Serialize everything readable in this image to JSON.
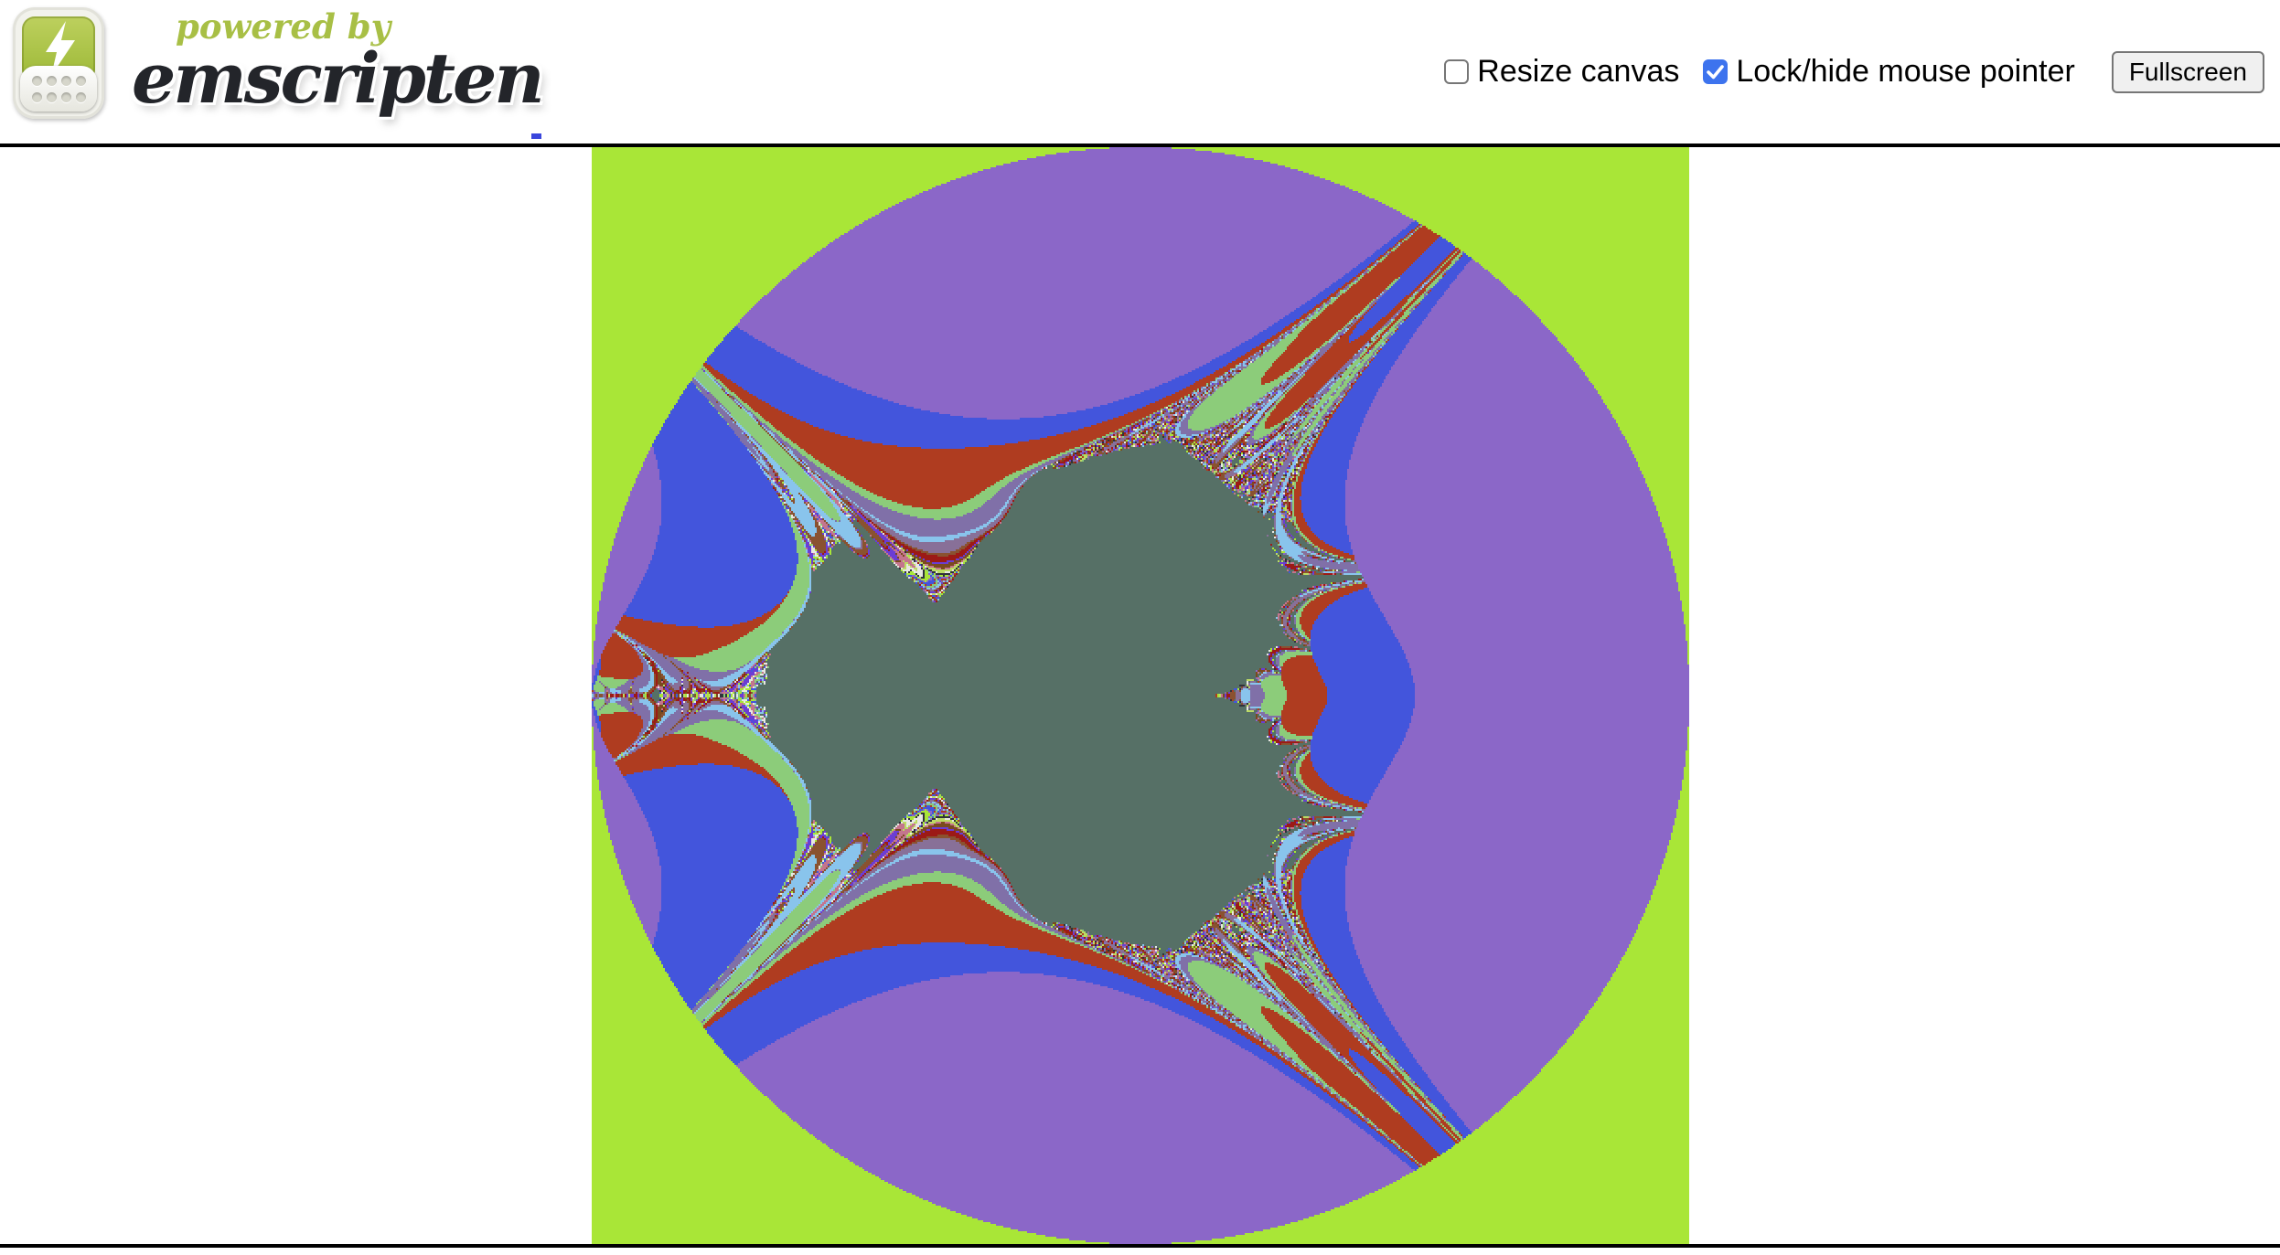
{
  "page": {
    "background": "#ffffff"
  },
  "header": {
    "logo": {
      "powered_by": "powered by",
      "brand": "emscripten",
      "powered_by_color": "#A8BF45",
      "brand_color": "#23252A",
      "icon_green": "#A3BE3E",
      "icon_body": "#F2F2EC"
    },
    "controls": {
      "resize_label": "Resize canvas",
      "resize_checked": false,
      "lock_label": "Lock/hide mouse pointer",
      "lock_checked": true,
      "checkbox_checked_color": "#3D73EE",
      "fullscreen_label": "Fullscreen"
    },
    "status_dash_color": "#3A46DC"
  },
  "fractal": {
    "type": "mandelbrot-escape-time",
    "view": {
      "re_min": -2,
      "re_max": 2,
      "im_min": -2,
      "im_max": 2
    },
    "resolution": 600,
    "display_size": 1200,
    "max_iterations": 100,
    "escape_radius_sq": 4.0,
    "buggy_y_update": true,
    "interior_color": "#567066",
    "palette": [
      "#A9E637",
      "#8B67C8",
      "#4355DC",
      "#AF3C20",
      "#8CCC7A",
      "#8070A8",
      "#89C4EC",
      "#887098",
      "#8A5230",
      "#9C1A16",
      "#6B3DD4",
      "#7B4A1E",
      "#C4758D",
      "#BCDB64",
      "#E8E8E2",
      "#30313C"
    ]
  }
}
